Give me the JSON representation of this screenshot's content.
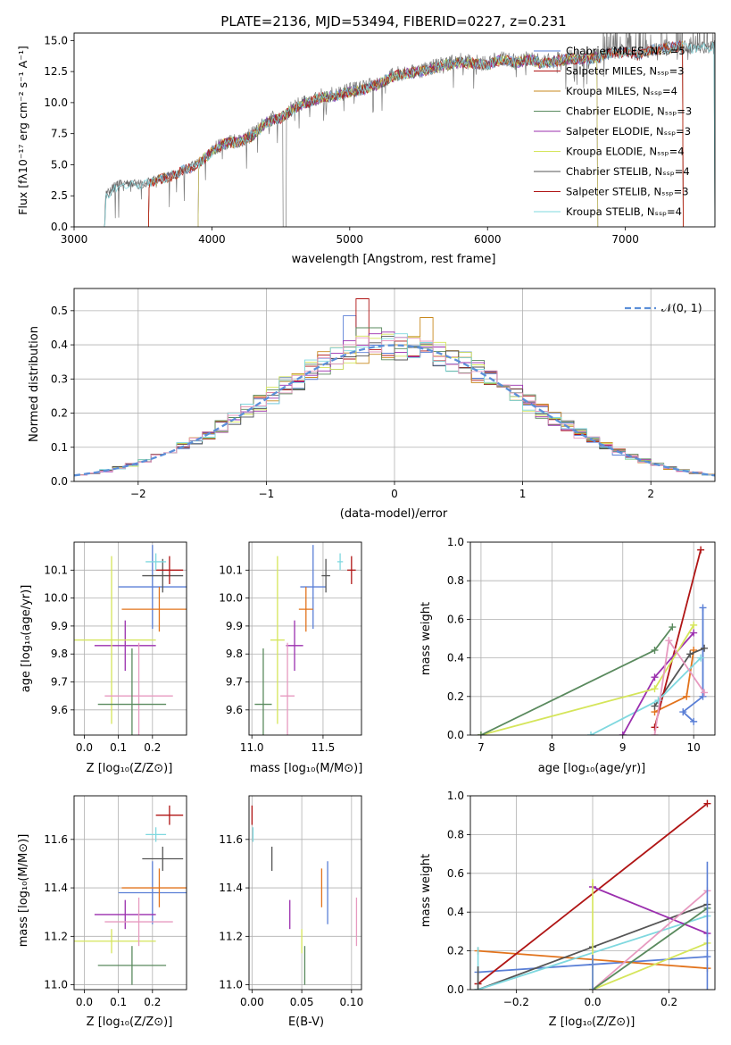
{
  "colors": [
    "#5a7fd6",
    "#e2731c",
    "#c8891f",
    "#5a8a5e",
    "#9b2fae",
    "#d5e55a",
    "#555555",
    "#b01515",
    "#7fd8df",
    "#e79ac0"
  ],
  "chart_data": [
    {
      "id": "spectrum",
      "type": "line",
      "title": "PLATE=2136, MJD=53494, FIBERID=0227, z=0.231",
      "xlabel": "wavelength [Angstrom, rest frame]",
      "ylabel": "Flux [fλ10⁻¹⁷ erg cm⁻² s⁻¹ A⁻¹]",
      "xlim": [
        3000,
        7650
      ],
      "ylim": [
        0,
        15.6
      ],
      "xticks": [
        3000,
        4000,
        5000,
        6000,
        7000
      ],
      "yticks": [
        0.0,
        2.5,
        5.0,
        7.5,
        10.0,
        12.5,
        15.0
      ],
      "data_range": [
        3220,
        7650
      ],
      "continuum": [
        [
          3220,
          0
        ],
        [
          3230,
          2.6
        ],
        [
          3300,
          3.4
        ],
        [
          3400,
          3.6
        ],
        [
          3500,
          3.5
        ],
        [
          3600,
          3.9
        ],
        [
          3700,
          4.2
        ],
        [
          3800,
          4.7
        ],
        [
          3900,
          5.2
        ],
        [
          4000,
          6.2
        ],
        [
          4100,
          6.9
        ],
        [
          4200,
          7.0
        ],
        [
          4300,
          7.5
        ],
        [
          4400,
          8.6
        ],
        [
          4500,
          8.9
        ],
        [
          4600,
          9.7
        ],
        [
          4700,
          10.2
        ],
        [
          4800,
          10.6
        ],
        [
          4900,
          10.7
        ],
        [
          5000,
          11.0
        ],
        [
          5100,
          11.2
        ],
        [
          5200,
          11.6
        ],
        [
          5300,
          12.2
        ],
        [
          5400,
          12.5
        ],
        [
          5500,
          12.6
        ],
        [
          5600,
          12.9
        ],
        [
          5700,
          13.2
        ],
        [
          5800,
          13.4
        ],
        [
          5900,
          13.3
        ],
        [
          6000,
          13.2
        ],
        [
          6100,
          13.6
        ],
        [
          6200,
          13.4
        ],
        [
          6300,
          13.6
        ],
        [
          6400,
          13.3
        ],
        [
          6500,
          13.5
        ],
        [
          6600,
          13.7
        ],
        [
          6700,
          13.6
        ],
        [
          6800,
          13.8
        ],
        [
          6900,
          14.2
        ],
        [
          7000,
          14.2
        ],
        [
          7100,
          14.0
        ],
        [
          7200,
          14.4
        ],
        [
          7300,
          14.5
        ],
        [
          7400,
          14.7
        ],
        [
          7500,
          14.5
        ],
        [
          7650,
          14.6
        ]
      ],
      "legend_position": "right",
      "series": [
        {
          "name": "Chabrier MILES, Nₛₛₚ=5",
          "start": 3540,
          "end": 7420
        },
        {
          "name": "Salpeter MILES, Nₛₛₚ=3",
          "start": 3540,
          "end": 7420
        },
        {
          "name": "Kroupa MILES, Nₛₛₚ=4",
          "start": 3540,
          "end": 7420
        },
        {
          "name": "Chabrier ELODIE, Nₛₛₚ=3",
          "start": 3900,
          "end": 6800
        },
        {
          "name": "Salpeter ELODIE, Nₛₛₚ=3",
          "start": 3900,
          "end": 6800
        },
        {
          "name": "Kroupa ELODIE, Nₛₛₚ=4",
          "start": 3900,
          "end": 6800
        },
        {
          "name": "Chabrier STELIB, Nₛₛₚ=4",
          "start": 3220,
          "end": 7650
        },
        {
          "name": "Salpeter STELIB, Nₛₛₚ=3",
          "start": 3540,
          "end": 7420
        },
        {
          "name": "Kroupa STELIB, Nₛₛₚ=4",
          "start": 3220,
          "end": 7650
        }
      ]
    },
    {
      "id": "residuals",
      "type": "line",
      "xlabel": "(data-model)/error",
      "ylabel": "Normed distribution",
      "xlim": [
        -2.5,
        2.5
      ],
      "ylim": [
        0,
        0.565
      ],
      "xticks": [
        -2,
        -1,
        0,
        1,
        2
      ],
      "yticks": [
        0.0,
        0.1,
        0.2,
        0.3,
        0.4,
        0.5
      ],
      "grid": true,
      "legend_label": "𝒩(0, 1)",
      "legend_position": "top-right",
      "bin_width": 0.1,
      "histogram_peaks": [
        0.485,
        0.535,
        0.48,
        0.45
      ],
      "histogram_series_count": 9
    },
    {
      "id": "age-vs-Z",
      "type": "scatter",
      "xlabel": "Z [log₁₀(Z/Z⊙)]",
      "ylabel": "age  [log₁₀(age/yr)]",
      "xlim": [
        -0.03,
        0.3
      ],
      "ylim": [
        9.51,
        10.2
      ],
      "xticks": [
        0.0,
        0.1,
        0.2
      ],
      "yticks": [
        9.6,
        9.7,
        9.8,
        9.9,
        10.0,
        10.1
      ],
      "grid": true,
      "points": [
        {
          "c": 0,
          "x": 0.2,
          "y": 10.04,
          "xerr": 0.1,
          "yerr": 0.15
        },
        {
          "c": 1,
          "x": 0.22,
          "y": 9.96,
          "xerr": 0.11,
          "yerr": 0.08
        },
        {
          "c": 6,
          "x": 0.23,
          "y": 10.08,
          "xerr": 0.06,
          "yerr": 0.06
        },
        {
          "c": 7,
          "x": 0.25,
          "y": 10.1,
          "xerr": 0.04,
          "yerr": 0.05
        },
        {
          "c": 8,
          "x": 0.21,
          "y": 10.13,
          "xerr": 0.03,
          "yerr": 0.03
        },
        {
          "c": 4,
          "x": 0.12,
          "y": 9.83,
          "xerr": 0.09,
          "yerr": 0.09
        },
        {
          "c": 5,
          "x": 0.08,
          "y": 9.85,
          "xerr": 0.13,
          "yerr": 0.3
        },
        {
          "c": 9,
          "x": 0.16,
          "y": 9.65,
          "xerr": 0.1,
          "yerr": 0.19
        },
        {
          "c": 3,
          "x": 0.14,
          "y": 9.62,
          "xerr": 0.1,
          "yerr": 0.2
        }
      ]
    },
    {
      "id": "age-vs-mass",
      "type": "scatter",
      "xlabel": "mass [log₁₀(M/M⊙)]",
      "xlim": [
        10.98,
        11.77
      ],
      "ylim": [
        9.51,
        10.2
      ],
      "xticks": [
        11.0,
        11.5
      ],
      "yticks": [
        9.6,
        9.7,
        9.8,
        9.9,
        10.0,
        10.1
      ],
      "grid": true,
      "points": [
        {
          "c": 0,
          "x": 11.43,
          "y": 10.04,
          "xerr": 0.09,
          "yerr": 0.15
        },
        {
          "c": 1,
          "x": 11.38,
          "y": 9.96,
          "xerr": 0.05,
          "yerr": 0.08
        },
        {
          "c": 6,
          "x": 11.52,
          "y": 10.08,
          "xerr": 0.03,
          "yerr": 0.06
        },
        {
          "c": 7,
          "x": 11.7,
          "y": 10.1,
          "xerr": 0.03,
          "yerr": 0.05
        },
        {
          "c": 8,
          "x": 11.62,
          "y": 10.13,
          "xerr": 0.02,
          "yerr": 0.03
        },
        {
          "c": 4,
          "x": 11.3,
          "y": 9.83,
          "xerr": 0.06,
          "yerr": 0.09
        },
        {
          "c": 5,
          "x": 11.18,
          "y": 9.85,
          "xerr": 0.05,
          "yerr": 0.3
        },
        {
          "c": 9,
          "x": 11.25,
          "y": 9.65,
          "xerr": 0.05,
          "yerr": 0.19
        },
        {
          "c": 3,
          "x": 11.08,
          "y": 9.62,
          "xerr": 0.06,
          "yerr": 0.2
        }
      ]
    },
    {
      "id": "weight-vs-age",
      "type": "line",
      "xlabel": "age  [log₁₀(age/yr)]",
      "ylabel": "mass weight",
      "xlim": [
        6.85,
        10.3
      ],
      "ylim": [
        0,
        1
      ],
      "xticks": [
        7,
        8,
        9,
        10
      ],
      "yticks": [
        0.0,
        0.2,
        0.4,
        0.6,
        0.8,
        1.0
      ],
      "grid": true,
      "series": [
        {
          "c": 0,
          "x": [
            10.0,
            9.85,
            10.13,
            10.13
          ],
          "y": [
            0.07,
            0.12,
            0.2,
            0.66
          ]
        },
        {
          "c": 1,
          "x": [
            9.45,
            9.9,
            10.0
          ],
          "y": [
            0.12,
            0.2,
            0.44
          ]
        },
        {
          "c": 6,
          "x": [
            9.45,
            9.95,
            10.15
          ],
          "y": [
            0.15,
            0.42,
            0.45
          ]
        },
        {
          "c": 7,
          "x": [
            9.45,
            10.1
          ],
          "y": [
            0.04,
            0.96
          ]
        },
        {
          "c": 8,
          "x": [
            8.55,
            9.5,
            10.1
          ],
          "y": [
            0.0,
            0.18,
            0.4
          ]
        },
        {
          "c": 4,
          "x": [
            9.0,
            9.45,
            10.0
          ],
          "y": [
            0.0,
            0.3,
            0.53
          ]
        },
        {
          "c": 5,
          "x": [
            7.0,
            9.45,
            10.0
          ],
          "y": [
            0.0,
            0.24,
            0.57
          ]
        },
        {
          "c": 9,
          "x": [
            9.45,
            9.65,
            10.15
          ],
          "y": [
            0.0,
            0.49,
            0.22
          ]
        },
        {
          "c": 3,
          "x": [
            7.0,
            9.45,
            9.7
          ],
          "y": [
            0.0,
            0.44,
            0.56
          ]
        }
      ]
    },
    {
      "id": "mass-vs-Z",
      "type": "scatter",
      "xlabel": "Z [log₁₀(Z/Z⊙)]",
      "ylabel": "mass [log₁₀(M/M⊙)]",
      "xlim": [
        -0.03,
        0.3
      ],
      "ylim": [
        10.98,
        11.78
      ],
      "xticks": [
        0.0,
        0.1,
        0.2
      ],
      "yticks": [
        11.0,
        11.2,
        11.4,
        11.6
      ],
      "grid": true,
      "points": [
        {
          "c": 0,
          "x": 0.2,
          "y": 11.38,
          "xerr": 0.1,
          "yerr": 0.13
        },
        {
          "c": 1,
          "x": 0.22,
          "y": 11.4,
          "xerr": 0.11,
          "yerr": 0.08
        },
        {
          "c": 6,
          "x": 0.23,
          "y": 11.52,
          "xerr": 0.06,
          "yerr": 0.05
        },
        {
          "c": 7,
          "x": 0.25,
          "y": 11.7,
          "xerr": 0.04,
          "yerr": 0.04
        },
        {
          "c": 8,
          "x": 0.21,
          "y": 11.62,
          "xerr": 0.03,
          "yerr": 0.03
        },
        {
          "c": 4,
          "x": 0.12,
          "y": 11.29,
          "xerr": 0.09,
          "yerr": 0.06
        },
        {
          "c": 5,
          "x": 0.08,
          "y": 11.18,
          "xerr": 0.13,
          "yerr": 0.05
        },
        {
          "c": 9,
          "x": 0.16,
          "y": 11.26,
          "xerr": 0.1,
          "yerr": 0.1
        },
        {
          "c": 3,
          "x": 0.14,
          "y": 11.08,
          "xerr": 0.1,
          "yerr": 0.08
        }
      ]
    },
    {
      "id": "mass-vs-EBV",
      "type": "scatter",
      "xlabel": "E(B-V)",
      "xlim": [
        -0.003,
        0.11
      ],
      "ylim": [
        10.98,
        11.78
      ],
      "xticks": [
        0.0,
        0.05,
        0.1
      ],
      "yticks": [
        11.0,
        11.2,
        11.4,
        11.6
      ],
      "grid": true,
      "points": [
        {
          "c": 7,
          "x": 0.0,
          "y": 11.7,
          "yerr": 0.04
        },
        {
          "c": 8,
          "x": 0.001,
          "y": 11.62,
          "yerr": 0.03
        },
        {
          "c": 6,
          "x": 0.02,
          "y": 11.52,
          "yerr": 0.05
        },
        {
          "c": 1,
          "x": 0.07,
          "y": 11.4,
          "yerr": 0.08
        },
        {
          "c": 0,
          "x": 0.076,
          "y": 11.38,
          "yerr": 0.13
        },
        {
          "c": 9,
          "x": 0.105,
          "y": 11.26,
          "yerr": 0.1
        },
        {
          "c": 4,
          "x": 0.038,
          "y": 11.29,
          "yerr": 0.06
        },
        {
          "c": 5,
          "x": 0.05,
          "y": 11.18,
          "yerr": 0.05
        },
        {
          "c": 3,
          "x": 0.053,
          "y": 11.08,
          "yerr": 0.08
        }
      ]
    },
    {
      "id": "weight-vs-Z",
      "type": "line",
      "xlabel": "Z [log₁₀(Z/Z⊙)]",
      "ylabel": "mass weight",
      "xlim": [
        -0.32,
        0.32
      ],
      "ylim": [
        0,
        1
      ],
      "xticks": [
        -0.2,
        0.0,
        0.2
      ],
      "yticks": [
        0.0,
        0.2,
        0.4,
        0.6,
        0.8,
        1.0
      ],
      "grid": true,
      "series": [
        {
          "c": 0,
          "x": [
            -0.3,
            0.0,
            0.3
          ],
          "y": [
            0.09,
            0.13,
            0.17
          ]
        },
        {
          "c": 1,
          "x": [
            -0.3,
            0.3
          ],
          "y": [
            0.2,
            0.11
          ]
        },
        {
          "c": 6,
          "x": [
            -0.3,
            0.0,
            0.3
          ],
          "y": [
            0.0,
            0.22,
            0.44
          ]
        },
        {
          "c": 7,
          "x": [
            -0.3,
            0.3
          ],
          "y": [
            0.03,
            0.96
          ]
        },
        {
          "c": 8,
          "x": [
            -0.3,
            0.3
          ],
          "y": [
            0.0,
            0.38
          ]
        },
        {
          "c": 4,
          "x": [
            0.0,
            0.3
          ],
          "y": [
            0.53,
            0.29
          ]
        },
        {
          "c": 5,
          "x": [
            0.0,
            0.3
          ],
          "y": [
            0.0,
            0.24
          ]
        },
        {
          "c": 9,
          "x": [
            0.0,
            0.3
          ],
          "y": [
            0.0,
            0.51
          ]
        },
        {
          "c": 3,
          "x": [
            0.0,
            0.3
          ],
          "y": [
            0.0,
            0.42
          ]
        }
      ],
      "errbars": [
        {
          "c": 0,
          "x": 0.3,
          "y0": 0.0,
          "y1": 0.66
        },
        {
          "c": 8,
          "x": -0.3,
          "y0": 0.0,
          "y1": 0.22
        },
        {
          "c": 6,
          "x": -0.3,
          "y0": 0.0,
          "y1": 0.12
        },
        {
          "c": 5,
          "x": 0.0,
          "y0": 0.0,
          "y1": 0.57
        },
        {
          "c": 0,
          "x": 0.0,
          "y0": 0.0,
          "y1": 0.18
        }
      ]
    }
  ]
}
